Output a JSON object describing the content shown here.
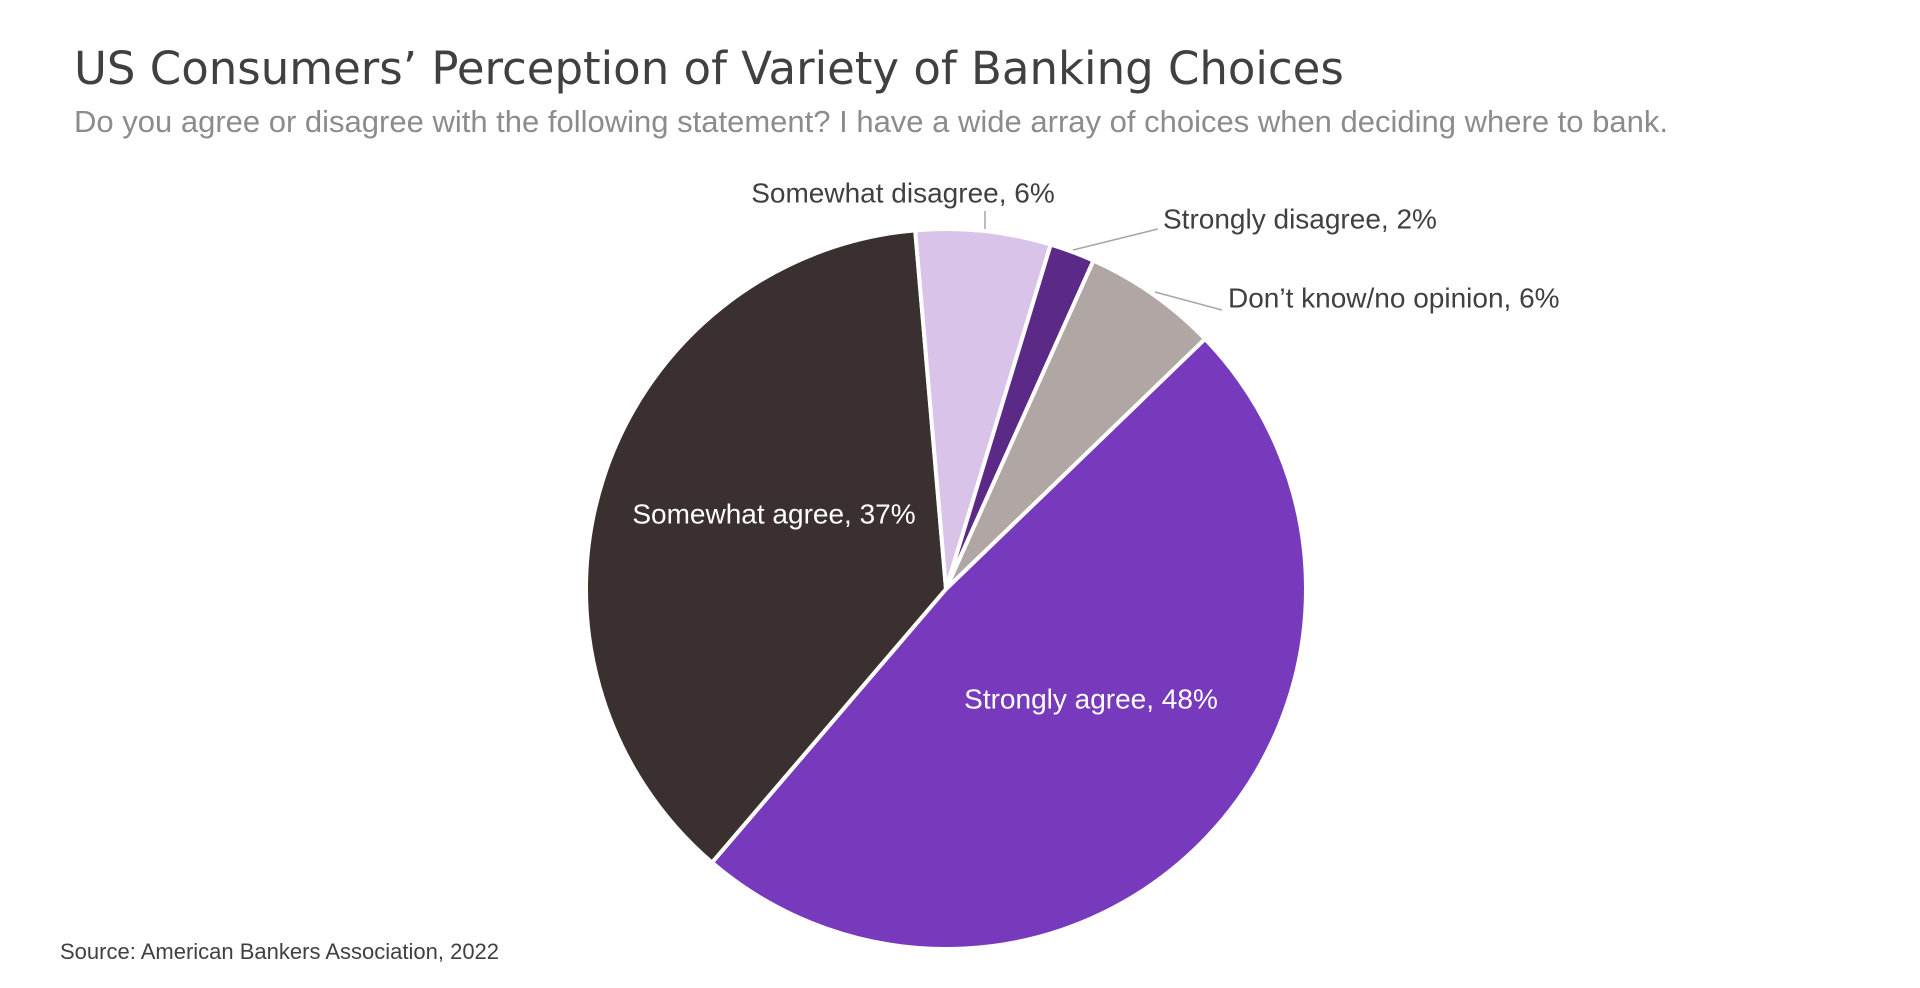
{
  "chart_data": {
    "type": "pie",
    "title": "US Consumers’ Perception of Variety of Banking Choices",
    "subtitle": "Do you agree or disagree with the following statement? I have a wide array of choices when deciding where to bank.",
    "source": "Source: American Bankers Association, 2022",
    "values": [
      48,
      37,
      6,
      2,
      6
    ],
    "value_labels": [
      "Strongly agree, 48%",
      "Somewhat agree, 37%",
      "Somewhat disagree, 6%",
      "Strongly disagree, 2%",
      "Don’t know/no opinion, 6%"
    ],
    "colors": [
      "#773abd",
      "#3a3030",
      "#d9c3e8",
      "#5b2a86",
      "#b0a7a4"
    ]
  }
}
